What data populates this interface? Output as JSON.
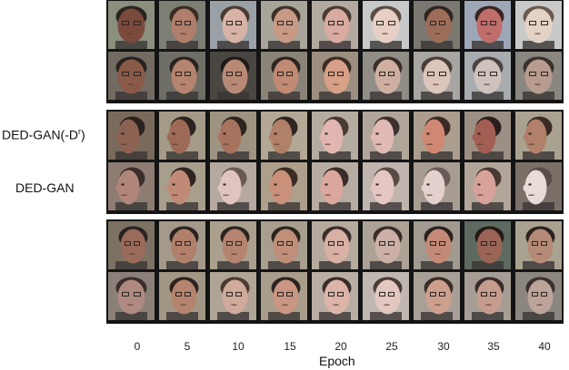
{
  "row_labels": {
    "ded_gan_minus": "DED-GAN(-D",
    "ded_gan_minus_sup": "r",
    "ded_gan_minus_close": ")",
    "ded_gan": "DED-GAN"
  },
  "x_axis": {
    "label": "Epoch",
    "ticks": [
      "0",
      "5",
      "10",
      "15",
      "20",
      "25",
      "30",
      "35",
      "40"
    ]
  },
  "groups": [
    {
      "name": "top-group",
      "rows": [
        {
          "name": "input-faces-row-1",
          "tiles": [
            {
              "bg": "#8a8f7e",
              "skin": "#7b4a3c",
              "hair": "#2a2420",
              "pose": 0
            },
            {
              "bg": "#7c7f74",
              "skin": "#b07e6c",
              "hair": "#3a2c24",
              "pose": 1
            },
            {
              "bg": "#9aa1a6",
              "skin": "#d7b3a6",
              "hair": "#4a3a30",
              "pose": 1
            },
            {
              "bg": "#a9a49a",
              "skin": "#c89a86",
              "hair": "#3c2f27",
              "pose": 1
            },
            {
              "bg": "#b2aaa0",
              "skin": "#d8aaa0",
              "hair": "#4b3a30",
              "pose": 1
            },
            {
              "bg": "#c7cac8",
              "skin": "#e7cfc6",
              "hair": "#5a4a40",
              "pose": 0
            },
            {
              "bg": "#7a7870",
              "skin": "#9c6e5a",
              "hair": "#2e2420",
              "pose": 1
            },
            {
              "bg": "#9ea7b7",
              "skin": "#c06e6c",
              "hair": "#3a2420",
              "pose": 1
            },
            {
              "bg": "#c8cac9",
              "skin": "#e4d2c6",
              "hair": "#6a5a50",
              "pose": 0
            }
          ]
        },
        {
          "name": "input-faces-row-2",
          "tiles": [
            {
              "bg": "#726b62",
              "skin": "#8a5a48",
              "hair": "#2a2220",
              "pose": 0
            },
            {
              "bg": "#6f6e66",
              "skin": "#b48470",
              "hair": "#2c2320",
              "pose": 1
            },
            {
              "bg": "#4a4642",
              "skin": "#b88a76",
              "hair": "#201a18",
              "pose": 1
            },
            {
              "bg": "#8a8378",
              "skin": "#c08a74",
              "hair": "#2e2420",
              "pose": 1
            },
            {
              "bg": "#9d8f80",
              "skin": "#d8a086",
              "hair": "#3a2c24",
              "pose": 1
            },
            {
              "bg": "#908d86",
              "skin": "#cfb0a0",
              "hair": "#3a2e28",
              "pose": 1
            },
            {
              "bg": "#a8a6a2",
              "skin": "#dcc6bc",
              "hair": "#4a3e38",
              "pose": 0
            },
            {
              "bg": "#a8acb0",
              "skin": "#cfc2bc",
              "hair": "#4a4240",
              "pose": 0
            },
            {
              "bg": "#8a8680",
              "skin": "#b89c90",
              "hair": "#3a302c",
              "pose": 0
            }
          ]
        }
      ]
    },
    {
      "name": "ded-gan-minus-group",
      "rows": [
        {
          "name": "ded-gan-minus-row",
          "tiles": [
            {
              "bg": "#7a6a5c",
              "skin": "#8c6252",
              "hair": "#2a2220",
              "pose": 2
            },
            {
              "bg": "#a49a88",
              "skin": "#9c6a56",
              "hair": "#2a2220",
              "pose": 2
            },
            {
              "bg": "#9d9381",
              "skin": "#a8735e",
              "hair": "#2e2420",
              "pose": 2
            },
            {
              "bg": "#b3a896",
              "skin": "#b08068",
              "hair": "#2e2420",
              "pose": 2
            },
            {
              "bg": "#b4aca0",
              "skin": "#e2b6b0",
              "hair": "#4a3a34",
              "pose": 2
            },
            {
              "bg": "#b0a69a",
              "skin": "#e0b8b4",
              "hair": "#3e302c",
              "pose": 2
            },
            {
              "bg": "#ab9e8e",
              "skin": "#d08872",
              "hair": "#3a2a24",
              "pose": 2
            },
            {
              "bg": "#9c9084",
              "skin": "#a25e52",
              "hair": "#2a1e1c",
              "pose": 2
            },
            {
              "bg": "#aaa290",
              "skin": "#b0806a",
              "hair": "#3a2c24",
              "pose": 2
            }
          ]
        },
        {
          "name": "ded-gan-row",
          "tiles": [
            {
              "bg": "#8e7c72",
              "skin": "#b0857a",
              "hair": "#3a2e2a",
              "pose": 2
            },
            {
              "bg": "#a89e8c",
              "skin": "#c08a76",
              "hair": "#2e2420",
              "pose": 2
            },
            {
              "bg": "#b4a8a0",
              "skin": "#e0c4c0",
              "hair": "#6a5a54",
              "pose": 2
            },
            {
              "bg": "#ae9f8a",
              "skin": "#c9907a",
              "hair": "#3a2c24",
              "pose": 2
            },
            {
              "bg": "#b6aca2",
              "skin": "#dba89e",
              "hair": "#3a2c28",
              "pose": 2
            },
            {
              "bg": "#c0b4ae",
              "skin": "#e6c6c2",
              "hair": "#5a4a44",
              "pose": 2
            },
            {
              "bg": "#a69c92",
              "skin": "#e4d0cc",
              "hair": "#6a5a56",
              "pose": 2
            },
            {
              "bg": "#b2a69a",
              "skin": "#d8a29a",
              "hair": "#4a3a34",
              "pose": 2
            },
            {
              "bg": "#7a7068",
              "skin": "#e8dcd8",
              "hair": "#5a4e48",
              "pose": 2
            }
          ]
        }
      ]
    },
    {
      "name": "bottom-group",
      "rows": [
        {
          "name": "bottom-row-1",
          "tiles": [
            {
              "bg": "#7c7264",
              "skin": "#9a6a5a",
              "hair": "#2a2220",
              "pose": 1
            },
            {
              "bg": "#a4998a",
              "skin": "#b0806c",
              "hair": "#2c231f",
              "pose": 1
            },
            {
              "bg": "#aba08e",
              "skin": "#b58470",
              "hair": "#2c231f",
              "pose": 1
            },
            {
              "bg": "#a89e8e",
              "skin": "#c08f7a",
              "hair": "#2c231f",
              "pose": 1
            },
            {
              "bg": "#b4aa9e",
              "skin": "#d8b0a4",
              "hair": "#3a2c28",
              "pose": 1
            },
            {
              "bg": "#ada296",
              "skin": "#ccb0a8",
              "hair": "#3a2c28",
              "pose": 1
            },
            {
              "bg": "#a09a90",
              "skin": "#c48a78",
              "hair": "#2a201c",
              "pose": 1
            },
            {
              "bg": "#5e6a60",
              "skin": "#9a6456",
              "hair": "#241a18",
              "pose": 1
            },
            {
              "bg": "#aaa290",
              "skin": "#b58a76",
              "hair": "#2c231f",
              "pose": 1
            }
          ]
        },
        {
          "name": "bottom-row-2",
          "tiles": [
            {
              "bg": "#8a8078",
              "skin": "#b08a80",
              "hair": "#3a2e2a",
              "pose": 0
            },
            {
              "bg": "#a29684",
              "skin": "#b5846e",
              "hair": "#2c231f",
              "pose": 1
            },
            {
              "bg": "#b0a496",
              "skin": "#d0aa9a",
              "hair": "#4a3a32",
              "pose": 1
            },
            {
              "bg": "#a89c8a",
              "skin": "#c89682",
              "hair": "#2c231f",
              "pose": 1
            },
            {
              "bg": "#b8aea4",
              "skin": "#dcb4a8",
              "hair": "#3a2c28",
              "pose": 1
            },
            {
              "bg": "#c0b8b0",
              "skin": "#e2c8c0",
              "hair": "#4a3c36",
              "pose": 1
            },
            {
              "bg": "#a8a096",
              "skin": "#cda08e",
              "hair": "#3a2c26",
              "pose": 1
            },
            {
              "bg": "#a69e94",
              "skin": "#c69c8e",
              "hair": "#3a2c28",
              "pose": 1
            },
            {
              "bg": "#8c8680",
              "skin": "#bca49a",
              "hair": "#3a302c",
              "pose": 1
            }
          ]
        }
      ]
    }
  ]
}
